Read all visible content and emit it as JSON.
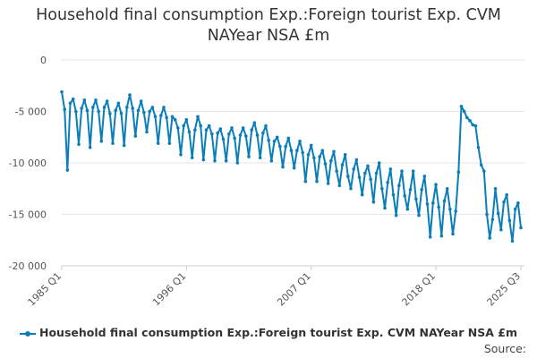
{
  "title_line1": "Household final consumption Exp.:Foreign tourist Exp. CVM",
  "title_line2": "NAYear NSA £m",
  "source": "Source:",
  "series_color": "#0a7eb8",
  "chart_data": {
    "type": "line",
    "title": "Household final consumption Exp.:Foreign tourist Exp. CVM NAYear NSA £m",
    "xlabel": "",
    "ylabel": "",
    "ylim": [
      -20000,
      0
    ],
    "yticks": [
      0,
      -5000,
      -10000,
      -15000,
      -20000
    ],
    "ytick_labels": [
      "0",
      "-5 000",
      "-10 000",
      "-15 000",
      "-20 000"
    ],
    "xticks": [
      {
        "q": 0,
        "label": "1985 Q1"
      },
      {
        "q": 44,
        "label": "1996 Q1"
      },
      {
        "q": 88,
        "label": "2007 Q1"
      },
      {
        "q": 132,
        "label": "2018 Q1"
      },
      {
        "q": 162,
        "label": "2025 Q3"
      }
    ],
    "grid": "horizontal",
    "legend_position": "bottom",
    "series": [
      {
        "name": "Household final consumption Exp.:Foreign tourist Exp. CVM NAYear NSA £m",
        "start": "1985 Q1",
        "frequency": "quarterly",
        "values": [
          -3100,
          -4800,
          -10700,
          -4200,
          -3800,
          -5000,
          -8200,
          -4700,
          -3900,
          -4900,
          -8500,
          -4600,
          -3900,
          -5000,
          -7900,
          -4600,
          -4000,
          -5200,
          -8100,
          -4900,
          -4200,
          -5200,
          -8300,
          -4600,
          -3400,
          -4700,
          -7400,
          -4900,
          -4000,
          -5100,
          -7000,
          -5000,
          -4600,
          -5500,
          -8100,
          -5400,
          -4600,
          -5600,
          -8100,
          -5500,
          -5800,
          -6600,
          -9200,
          -6400,
          -5800,
          -7000,
          -9500,
          -6800,
          -5500,
          -6400,
          -9700,
          -6800,
          -6400,
          -7200,
          -9800,
          -7100,
          -6700,
          -7700,
          -9800,
          -7200,
          -6600,
          -7600,
          -10000,
          -7300,
          -6600,
          -7400,
          -9400,
          -6800,
          -6100,
          -7300,
          -9500,
          -7100,
          -6400,
          -7800,
          -9800,
          -7900,
          -7500,
          -8400,
          -10400,
          -8400,
          -7600,
          -8800,
          -10500,
          -8800,
          -7900,
          -9000,
          -11800,
          -9200,
          -8300,
          -9500,
          -11800,
          -9400,
          -8800,
          -10100,
          -12000,
          -9800,
          -8900,
          -10800,
          -12200,
          -10200,
          -9200,
          -11300,
          -12500,
          -10600,
          -9700,
          -11400,
          -13100,
          -11000,
          -10300,
          -11600,
          -13800,
          -11000,
          -10000,
          -12500,
          -14400,
          -11900,
          -10600,
          -13100,
          -15100,
          -12200,
          -10800,
          -13200,
          -14500,
          -12600,
          -10800,
          -13500,
          -15100,
          -12600,
          -11300,
          -14000,
          -17200,
          -13900,
          -12100,
          -14300,
          -17100,
          -13700,
          -12500,
          -14500,
          -16900,
          -14700,
          -10900,
          -4500,
          -5000,
          -5600,
          -5900,
          -6300,
          -6400,
          -8500,
          -10200,
          -10800,
          -15000,
          -17300,
          -15500,
          -12500,
          -14900,
          -16500,
          -13800,
          -13100,
          -15600,
          -17600,
          -14500,
          -13900,
          -16300
        ]
      }
    ]
  },
  "legend_label": "Household final consumption Exp.:Foreign tourist Exp. CVM NAYear NSA £m"
}
